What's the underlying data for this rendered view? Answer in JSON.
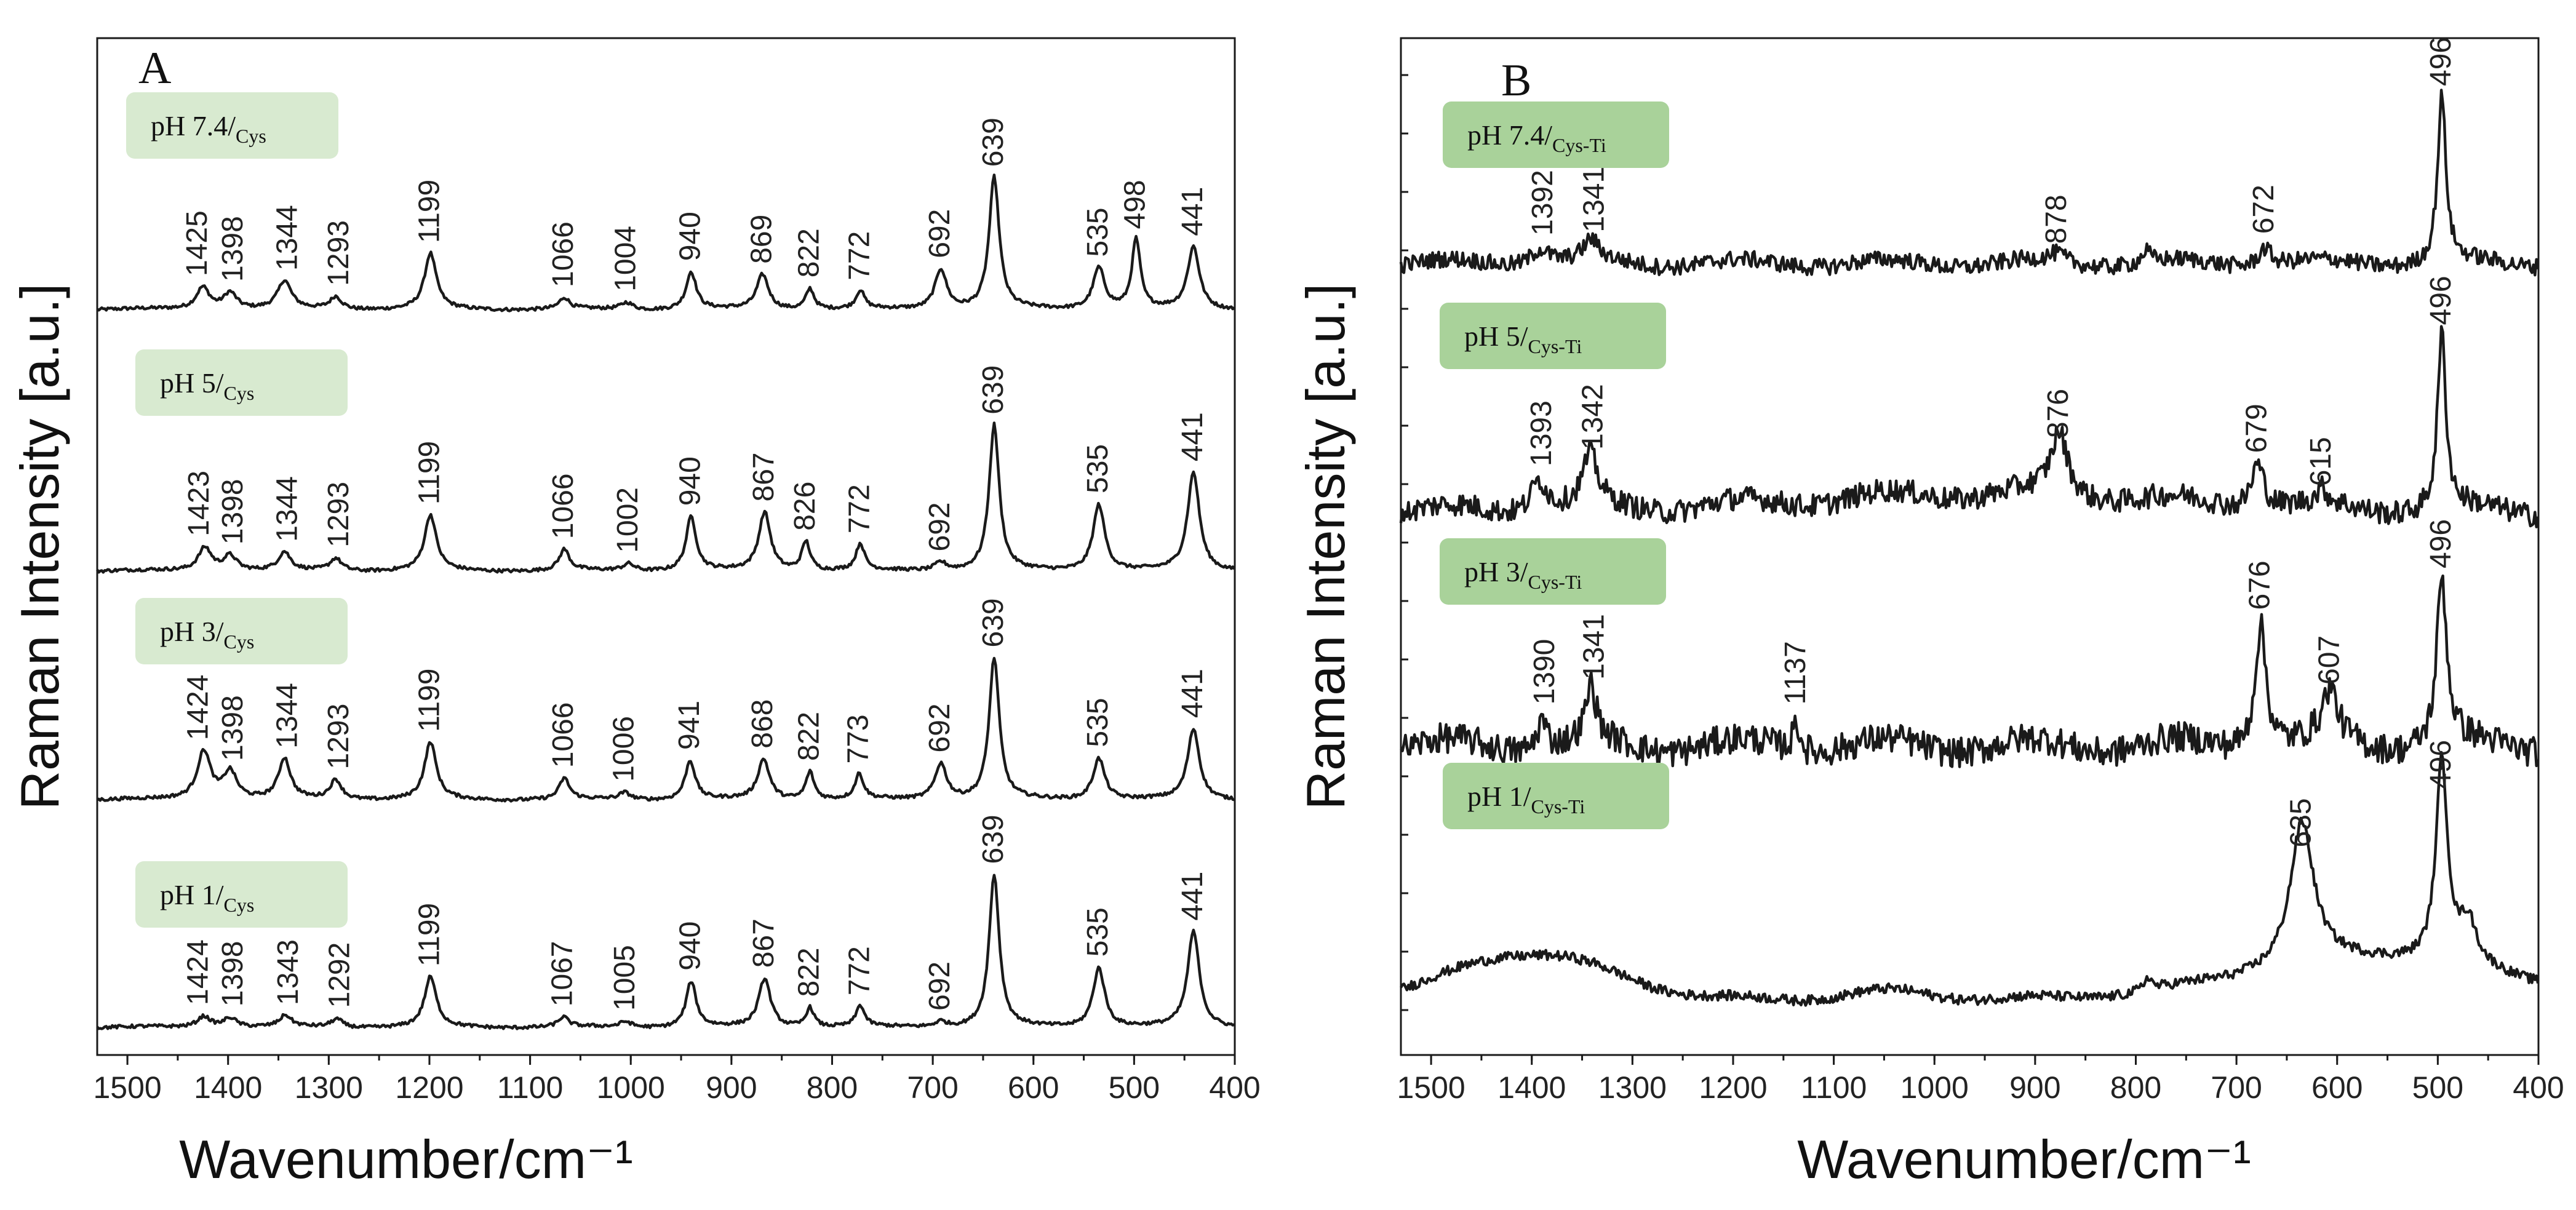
{
  "chart_data": [
    {
      "panel": "A",
      "type": "line",
      "xlabel": "Wavenumber/cm⁻¹",
      "ylabel": "Raman Intensity [a.u.]",
      "xlim": [
        1530,
        400
      ],
      "x_ticks": [
        1500,
        1400,
        1300,
        1200,
        1100,
        1000,
        900,
        800,
        700,
        600,
        500,
        400
      ],
      "x_tick_labels": [
        "1500",
        "1400",
        "1300",
        "1200",
        "1100",
        "1000",
        "900",
        "800",
        "700",
        "600",
        "500",
        "400"
      ],
      "series": [
        {
          "name": "pH 7.4",
          "label_main": "pH 7.4/",
          "label_sub": "Cys",
          "baseline": 0,
          "noise": 0.012,
          "peaks": [
            {
              "x": 1425,
              "h": 0.16,
              "w": 8,
              "label": "1425"
            },
            {
              "x": 1398,
              "h": 0.12,
              "w": 8,
              "label": "1398"
            },
            {
              "x": 1344,
              "h": 0.2,
              "w": 8,
              "label": "1344"
            },
            {
              "x": 1293,
              "h": 0.09,
              "w": 7,
              "label": "1293"
            },
            {
              "x": 1199,
              "h": 0.4,
              "w": 7,
              "label": "1199"
            },
            {
              "x": 1066,
              "h": 0.08,
              "w": 6,
              "label": "1066"
            },
            {
              "x": 1004,
              "h": 0.05,
              "w": 7,
              "label": "1004"
            },
            {
              "x": 940,
              "h": 0.27,
              "w": 6,
              "label": "940"
            },
            {
              "x": 869,
              "h": 0.25,
              "w": 7,
              "label": "869"
            },
            {
              "x": 822,
              "h": 0.15,
              "w": 5,
              "label": "822"
            },
            {
              "x": 772,
              "h": 0.13,
              "w": 5,
              "label": "772"
            },
            {
              "x": 692,
              "h": 0.29,
              "w": 7,
              "label": "692"
            },
            {
              "x": 639,
              "h": 0.95,
              "w": 6,
              "label": "639"
            },
            {
              "x": 535,
              "h": 0.3,
              "w": 7,
              "label": "535"
            },
            {
              "x": 498,
              "h": 0.5,
              "w": 5,
              "label": "498"
            },
            {
              "x": 441,
              "h": 0.45,
              "w": 7,
              "label": "441"
            }
          ]
        },
        {
          "name": "pH 5",
          "label_main": "pH 5/",
          "label_sub": "Cys",
          "baseline": 0,
          "noise": 0.012,
          "peaks": [
            {
              "x": 1423,
              "h": 0.17,
              "w": 8,
              "label": "1423"
            },
            {
              "x": 1398,
              "h": 0.11,
              "w": 8,
              "label": "1398"
            },
            {
              "x": 1344,
              "h": 0.13,
              "w": 7,
              "label": "1344"
            },
            {
              "x": 1293,
              "h": 0.09,
              "w": 7,
              "label": "1293"
            },
            {
              "x": 1199,
              "h": 0.4,
              "w": 7,
              "label": "1199"
            },
            {
              "x": 1066,
              "h": 0.15,
              "w": 6,
              "label": "1066"
            },
            {
              "x": 1002,
              "h": 0.05,
              "w": 7,
              "label": "1002"
            },
            {
              "x": 940,
              "h": 0.39,
              "w": 6,
              "label": "940"
            },
            {
              "x": 867,
              "h": 0.42,
              "w": 7,
              "label": "867"
            },
            {
              "x": 826,
              "h": 0.21,
              "w": 5,
              "label": "826"
            },
            {
              "x": 772,
              "h": 0.19,
              "w": 5,
              "label": "772"
            },
            {
              "x": 692,
              "h": 0.06,
              "w": 7,
              "label": "692"
            },
            {
              "x": 639,
              "h": 1.05,
              "w": 6,
              "label": "639"
            },
            {
              "x": 535,
              "h": 0.48,
              "w": 7,
              "label": "535"
            },
            {
              "x": 441,
              "h": 0.71,
              "w": 7,
              "label": "441"
            }
          ]
        },
        {
          "name": "pH 3",
          "label_main": "pH 3/",
          "label_sub": "Cys",
          "baseline": 0,
          "noise": 0.012,
          "peaks": [
            {
              "x": 1424,
              "h": 0.35,
              "w": 8,
              "label": "1424"
            },
            {
              "x": 1398,
              "h": 0.2,
              "w": 8,
              "label": "1398"
            },
            {
              "x": 1344,
              "h": 0.29,
              "w": 7,
              "label": "1344"
            },
            {
              "x": 1293,
              "h": 0.14,
              "w": 7,
              "label": "1293"
            },
            {
              "x": 1199,
              "h": 0.41,
              "w": 7,
              "label": "1199"
            },
            {
              "x": 1066,
              "h": 0.15,
              "w": 6,
              "label": "1066"
            },
            {
              "x": 1006,
              "h": 0.05,
              "w": 7,
              "label": "1006"
            },
            {
              "x": 941,
              "h": 0.28,
              "w": 6,
              "label": "941"
            },
            {
              "x": 868,
              "h": 0.29,
              "w": 7,
              "label": "868"
            },
            {
              "x": 822,
              "h": 0.2,
              "w": 5,
              "label": "822"
            },
            {
              "x": 773,
              "h": 0.18,
              "w": 5,
              "label": "773"
            },
            {
              "x": 692,
              "h": 0.26,
              "w": 7,
              "label": "692"
            },
            {
              "x": 639,
              "h": 1.02,
              "w": 6,
              "label": "639"
            },
            {
              "x": 535,
              "h": 0.3,
              "w": 7,
              "label": "535"
            },
            {
              "x": 441,
              "h": 0.51,
              "w": 7,
              "label": "441"
            }
          ]
        },
        {
          "name": "pH 1",
          "label_main": "pH 1/",
          "label_sub": "Cys",
          "baseline": 0,
          "noise": 0.012,
          "peaks": [
            {
              "x": 1424,
              "h": 0.08,
              "w": 8,
              "label": "1424"
            },
            {
              "x": 1398,
              "h": 0.07,
              "w": 8,
              "label": "1398"
            },
            {
              "x": 1343,
              "h": 0.08,
              "w": 7,
              "label": "1343"
            },
            {
              "x": 1292,
              "h": 0.06,
              "w": 7,
              "label": "1292"
            },
            {
              "x": 1199,
              "h": 0.36,
              "w": 7,
              "label": "1199"
            },
            {
              "x": 1067,
              "h": 0.07,
              "w": 6,
              "label": "1067"
            },
            {
              "x": 1005,
              "h": 0.04,
              "w": 7,
              "label": "1005"
            },
            {
              "x": 940,
              "h": 0.33,
              "w": 6,
              "label": "940"
            },
            {
              "x": 867,
              "h": 0.35,
              "w": 7,
              "label": "867"
            },
            {
              "x": 822,
              "h": 0.14,
              "w": 5,
              "label": "822"
            },
            {
              "x": 772,
              "h": 0.15,
              "w": 5,
              "label": "772"
            },
            {
              "x": 692,
              "h": 0.04,
              "w": 7,
              "label": "692"
            },
            {
              "x": 639,
              "h": 1.1,
              "w": 6,
              "label": "639"
            },
            {
              "x": 535,
              "h": 0.43,
              "w": 7,
              "label": "535"
            },
            {
              "x": 441,
              "h": 0.69,
              "w": 7,
              "label": "441"
            }
          ]
        }
      ]
    },
    {
      "panel": "B",
      "type": "line",
      "xlabel": "Wavenumber/cm⁻¹",
      "ylabel": "Raman Intensity [a.u.]",
      "xlim": [
        1530,
        400
      ],
      "x_ticks": [
        1500,
        1400,
        1300,
        1200,
        1100,
        1000,
        900,
        800,
        700,
        600,
        500,
        400
      ],
      "x_tick_labels": [
        "1500",
        "1400",
        "1300",
        "1200",
        "1100",
        "1000",
        "900",
        "800",
        "700",
        "600",
        "500",
        "400"
      ],
      "series": [
        {
          "name": "pH 7.4",
          "label_main": "pH 7.4/",
          "label_sub": "Cys-Ti",
          "baseline": 0,
          "noise": 0.05,
          "peaks": [
            {
              "x": 1392,
              "h": 0.1,
              "w": 12,
              "label": "1392"
            },
            {
              "x": 1341,
              "h": 0.12,
              "w": 9,
              "label": "1341"
            },
            {
              "x": 878,
              "h": 0.05,
              "w": 10,
              "label": "878"
            },
            {
              "x": 790,
              "h": 0.07,
              "w": 5,
              "label": ""
            },
            {
              "x": 672,
              "h": 0.11,
              "w": 8,
              "label": "672"
            },
            {
              "x": 496,
              "h": 1.0,
              "w": 5,
              "label": "496"
            }
          ]
        },
        {
          "name": "pH 5",
          "label_main": "pH 5/",
          "label_sub": "Cys-Ti",
          "baseline": 0,
          "noise": 0.07,
          "peaks": [
            {
              "x": 1393,
              "h": 0.2,
              "w": 10,
              "label": "1393"
            },
            {
              "x": 1342,
              "h": 0.3,
              "w": 9,
              "label": "1342"
            },
            {
              "x": 876,
              "h": 0.37,
              "w": 10,
              "label": "876"
            },
            {
              "x": 679,
              "h": 0.28,
              "w": 8,
              "label": "679"
            },
            {
              "x": 615,
              "h": 0.08,
              "w": 6,
              "label": "615"
            },
            {
              "x": 496,
              "h": 1.05,
              "w": 5,
              "label": "496"
            }
          ]
        },
        {
          "name": "pH 3",
          "label_main": "pH 3/",
          "label_sub": "Cys-Ti",
          "baseline": 0,
          "noise": 0.09,
          "peaks": [
            {
              "x": 1390,
              "h": 0.18,
              "w": 6,
              "label": "1390"
            },
            {
              "x": 1341,
              "h": 0.33,
              "w": 6,
              "label": "1341"
            },
            {
              "x": 1137,
              "h": 0.18,
              "w": 4,
              "label": "1137"
            },
            {
              "x": 676,
              "h": 0.75,
              "w": 7,
              "label": "676"
            },
            {
              "x": 607,
              "h": 0.3,
              "w": 9,
              "label": "607"
            },
            {
              "x": 496,
              "h": 1.0,
              "w": 6,
              "label": "496"
            }
          ]
        },
        {
          "name": "pH 1",
          "label_main": "pH 1/",
          "label_sub": "Cys-Ti",
          "baseline": 0,
          "noise": 0.03,
          "peaks": [
            {
              "x": 635,
              "h": 0.85,
              "w": 14,
              "label": "635"
            },
            {
              "x": 496,
              "h": 1.2,
              "w": 7,
              "label": "496"
            },
            {
              "x": 470,
              "h": 0.25,
              "w": 10,
              "label": ""
            },
            {
              "x": 788,
              "h": 0.08,
              "w": 4,
              "label": ""
            }
          ]
        }
      ]
    }
  ],
  "panelA": {
    "letter": "A"
  },
  "panelB": {
    "letter": "B"
  },
  "colors": {
    "line": "#1a1a1a",
    "legendA": "#d8ead0",
    "legendB": "#a9d29a"
  }
}
